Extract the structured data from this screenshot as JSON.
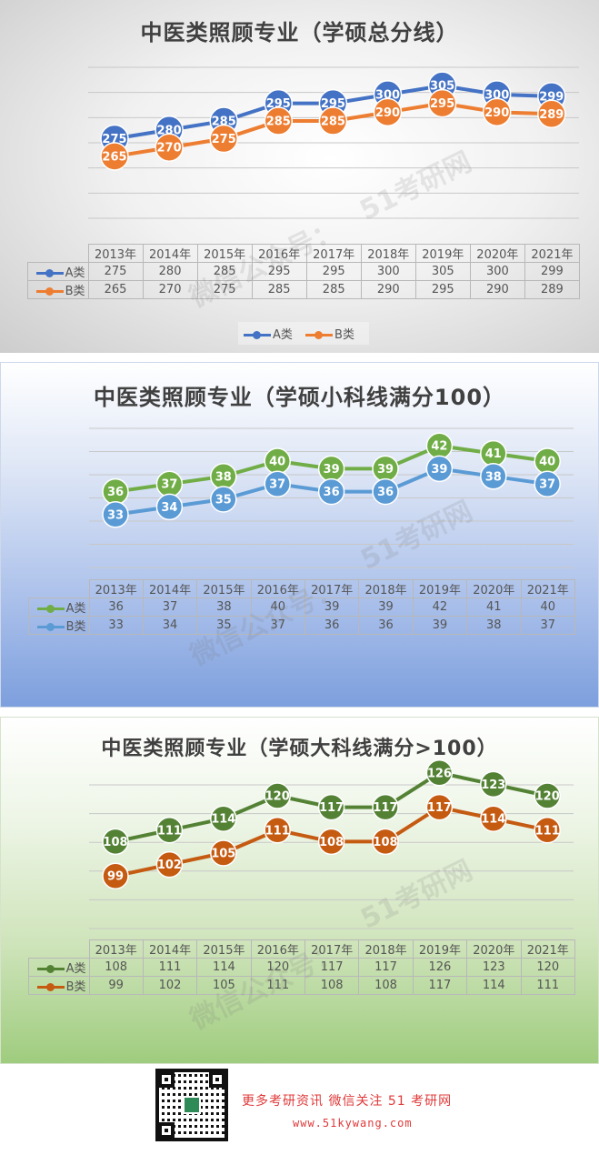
{
  "chart_data": [
    {
      "type": "line",
      "title": "中医类照顾专业（学硕总分线）",
      "categories": [
        "2013年",
        "2014年",
        "2015年",
        "2016年",
        "2017年",
        "2018年",
        "2019年",
        "2020年",
        "2021年"
      ],
      "series": [
        {
          "name": "A类",
          "values": [
            275,
            280,
            285,
            295,
            295,
            300,
            305,
            300,
            299
          ],
          "color": "#4472c4"
        },
        {
          "name": "B类",
          "values": [
            265,
            270,
            275,
            285,
            285,
            290,
            295,
            290,
            289
          ],
          "color": "#ed7d31"
        }
      ],
      "ylim": [
        230,
        320
      ],
      "grid": true,
      "data_table": true,
      "legend": "bottom"
    },
    {
      "type": "line",
      "title": "中医类照顾专业（学硕小科线满分100）",
      "categories": [
        "2013年",
        "2014年",
        "2015年",
        "2016年",
        "2017年",
        "2018年",
        "2019年",
        "2020年",
        "2021年"
      ],
      "series": [
        {
          "name": "A类",
          "values": [
            36,
            37,
            38,
            40,
            39,
            39,
            42,
            41,
            40
          ],
          "color": "#70ad47"
        },
        {
          "name": "B类",
          "values": [
            33,
            34,
            35,
            37,
            36,
            36,
            39,
            38,
            37
          ],
          "color": "#5b9bd5"
        }
      ],
      "ylim": [
        25,
        45
      ],
      "grid": true,
      "data_table": true
    },
    {
      "type": "line",
      "title": "中医类照顾专业（学硕大科线满分>100）",
      "categories": [
        "2013年",
        "2014年",
        "2015年",
        "2016年",
        "2017年",
        "2018年",
        "2019年",
        "2020年",
        "2021年"
      ],
      "series": [
        {
          "name": "A类",
          "values": [
            108,
            111,
            114,
            120,
            117,
            117,
            126,
            123,
            120
          ],
          "color": "#548235"
        },
        {
          "name": "B类",
          "values": [
            99,
            102,
            105,
            111,
            108,
            108,
            117,
            114,
            111
          ],
          "color": "#c55a11"
        }
      ],
      "ylim": [
        80,
        130
      ],
      "grid": true,
      "data_table": true
    }
  ],
  "watermark": {
    "line1": "51考研网",
    "line2": "微信公众号："
  },
  "footer": {
    "promo": "更多考研资讯 微信关注 51 考研网",
    "url": "www.51kywang.com"
  }
}
